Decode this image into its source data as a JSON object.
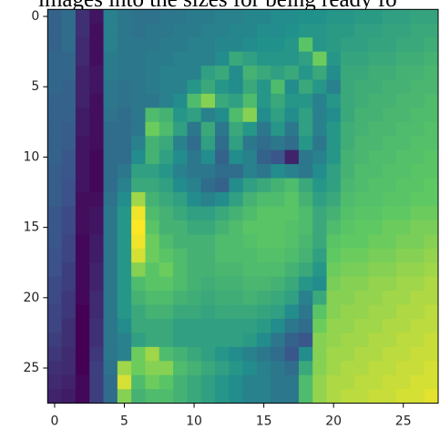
{
  "caption": "images into the sizes for being ready fo",
  "chart_data": {
    "type": "heatmap",
    "colormap": "viridis",
    "xlim": [
      -0.5,
      27.5
    ],
    "ylim": [
      27.5,
      -0.5
    ],
    "xticks": [
      0,
      5,
      10,
      15,
      20,
      25
    ],
    "yticks": [
      0,
      5,
      10,
      15,
      20,
      25
    ],
    "values": [
      [
        80,
        90,
        40,
        20,
        110,
        100,
        95,
        95,
        100,
        100,
        105,
        105,
        110,
        110,
        115,
        115,
        120,
        120,
        125,
        125,
        130,
        130,
        135,
        135,
        140,
        140,
        145,
        145
      ],
      [
        80,
        90,
        40,
        15,
        110,
        100,
        95,
        100,
        100,
        105,
        105,
        110,
        110,
        115,
        115,
        120,
        120,
        125,
        130,
        130,
        135,
        135,
        140,
        140,
        145,
        145,
        150,
        150
      ],
      [
        80,
        90,
        35,
        15,
        110,
        100,
        100,
        100,
        105,
        105,
        110,
        110,
        115,
        115,
        120,
        125,
        125,
        130,
        180,
        130,
        135,
        140,
        140,
        145,
        145,
        150,
        150,
        155
      ],
      [
        85,
        85,
        35,
        15,
        105,
        100,
        100,
        105,
        105,
        110,
        110,
        110,
        120,
        150,
        140,
        130,
        130,
        130,
        140,
        190,
        130,
        145,
        145,
        150,
        150,
        155,
        155,
        160
      ],
      [
        85,
        85,
        30,
        20,
        105,
        100,
        100,
        105,
        110,
        110,
        110,
        140,
        150,
        120,
        160,
        150,
        140,
        150,
        130,
        150,
        120,
        150,
        150,
        155,
        155,
        160,
        160,
        165
      ],
      [
        85,
        80,
        30,
        20,
        100,
        95,
        100,
        105,
        110,
        110,
        130,
        150,
        130,
        120,
        150,
        130,
        170,
        120,
        150,
        130,
        110,
        150,
        155,
        155,
        160,
        160,
        165,
        165
      ],
      [
        80,
        80,
        30,
        15,
        100,
        95,
        100,
        100,
        110,
        120,
        170,
        200,
        150,
        140,
        170,
        130,
        150,
        130,
        130,
        110,
        130,
        150,
        155,
        160,
        160,
        165,
        165,
        170
      ],
      [
        80,
        80,
        25,
        15,
        95,
        90,
        100,
        170,
        160,
        130,
        140,
        110,
        120,
        170,
        200,
        120,
        140,
        120,
        140,
        110,
        120,
        150,
        160,
        160,
        165,
        165,
        170,
        170
      ],
      [
        80,
        75,
        25,
        15,
        90,
        90,
        100,
        190,
        170,
        140,
        100,
        150,
        100,
        150,
        130,
        100,
        130,
        100,
        140,
        110,
        130,
        155,
        160,
        165,
        165,
        170,
        170,
        175
      ],
      [
        80,
        75,
        20,
        15,
        90,
        90,
        110,
        160,
        150,
        110,
        90,
        140,
        90,
        140,
        100,
        90,
        100,
        90,
        130,
        100,
        130,
        155,
        165,
        165,
        170,
        170,
        175,
        175
      ],
      [
        80,
        70,
        20,
        10,
        90,
        90,
        120,
        160,
        140,
        120,
        100,
        120,
        80,
        120,
        110,
        80,
        70,
        30,
        100,
        110,
        130,
        160,
        165,
        170,
        170,
        175,
        175,
        180
      ],
      [
        75,
        70,
        20,
        10,
        90,
        100,
        140,
        140,
        130,
        110,
        100,
        100,
        90,
        90,
        110,
        100,
        120,
        110,
        100,
        120,
        140,
        160,
        170,
        170,
        175,
        175,
        180,
        180
      ],
      [
        75,
        65,
        20,
        10,
        90,
        110,
        150,
        150,
        140,
        120,
        110,
        90,
        80,
        120,
        140,
        150,
        160,
        170,
        150,
        130,
        140,
        165,
        170,
        175,
        175,
        180,
        180,
        185
      ],
      [
        75,
        65,
        15,
        15,
        95,
        120,
        210,
        160,
        150,
        140,
        120,
        110,
        120,
        140,
        160,
        170,
        170,
        180,
        160,
        140,
        150,
        170,
        175,
        175,
        180,
        180,
        185,
        185
      ],
      [
        70,
        60,
        15,
        20,
        100,
        130,
        240,
        170,
        160,
        150,
        140,
        140,
        150,
        160,
        170,
        180,
        180,
        180,
        170,
        150,
        160,
        175,
        180,
        180,
        185,
        185,
        190,
        190
      ],
      [
        70,
        60,
        15,
        20,
        100,
        130,
        245,
        180,
        160,
        160,
        150,
        150,
        160,
        170,
        180,
        180,
        180,
        175,
        170,
        150,
        170,
        180,
        185,
        185,
        190,
        190,
        195,
        195
      ],
      [
        70,
        55,
        10,
        25,
        100,
        130,
        240,
        190,
        170,
        160,
        160,
        160,
        170,
        170,
        175,
        180,
        180,
        175,
        165,
        150,
        180,
        185,
        185,
        190,
        190,
        195,
        195,
        200
      ],
      [
        65,
        55,
        10,
        25,
        100,
        130,
        230,
        190,
        180,
        170,
        160,
        160,
        170,
        170,
        170,
        175,
        175,
        170,
        160,
        140,
        185,
        190,
        190,
        195,
        195,
        200,
        200,
        205
      ],
      [
        65,
        50,
        10,
        30,
        100,
        130,
        200,
        180,
        190,
        170,
        160,
        160,
        165,
        165,
        170,
        170,
        170,
        160,
        150,
        130,
        190,
        195,
        195,
        200,
        200,
        205,
        205,
        210
      ],
      [
        60,
        50,
        10,
        30,
        100,
        130,
        170,
        180,
        180,
        170,
        160,
        155,
        160,
        160,
        165,
        165,
        160,
        150,
        130,
        120,
        195,
        200,
        200,
        205,
        205,
        210,
        210,
        215
      ],
      [
        60,
        45,
        10,
        35,
        100,
        130,
        160,
        170,
        170,
        160,
        155,
        150,
        155,
        155,
        160,
        155,
        150,
        140,
        110,
        150,
        200,
        200,
        205,
        205,
        210,
        210,
        215,
        215
      ],
      [
        55,
        45,
        5,
        35,
        100,
        130,
        150,
        160,
        160,
        150,
        150,
        145,
        150,
        150,
        150,
        145,
        140,
        120,
        100,
        180,
        200,
        205,
        205,
        210,
        210,
        215,
        215,
        220
      ],
      [
        55,
        40,
        5,
        40,
        100,
        120,
        150,
        150,
        150,
        140,
        140,
        140,
        140,
        140,
        140,
        135,
        120,
        100,
        90,
        190,
        205,
        205,
        210,
        210,
        215,
        215,
        220,
        220
      ],
      [
        50,
        40,
        5,
        40,
        100,
        110,
        140,
        150,
        150,
        140,
        140,
        140,
        140,
        140,
        135,
        120,
        100,
        80,
        70,
        200,
        205,
        210,
        210,
        215,
        215,
        220,
        220,
        225
      ],
      [
        45,
        35,
        5,
        45,
        100,
        110,
        190,
        210,
        170,
        160,
        150,
        140,
        130,
        120,
        110,
        100,
        90,
        70,
        120,
        200,
        210,
        210,
        215,
        215,
        220,
        220,
        225,
        225
      ],
      [
        40,
        35,
        5,
        50,
        95,
        210,
        190,
        200,
        200,
        170,
        160,
        150,
        140,
        130,
        120,
        110,
        100,
        90,
        150,
        200,
        210,
        215,
        215,
        220,
        220,
        225,
        225,
        230
      ],
      [
        35,
        30,
        10,
        50,
        90,
        230,
        170,
        190,
        180,
        160,
        150,
        140,
        130,
        120,
        110,
        110,
        100,
        100,
        170,
        205,
        215,
        215,
        220,
        220,
        225,
        225,
        230,
        230
      ],
      [
        30,
        25,
        10,
        50,
        90,
        200,
        160,
        170,
        170,
        160,
        150,
        140,
        130,
        120,
        110,
        110,
        100,
        100,
        170,
        205,
        215,
        220,
        220,
        225,
        225,
        230,
        230,
        235
      ]
    ]
  }
}
